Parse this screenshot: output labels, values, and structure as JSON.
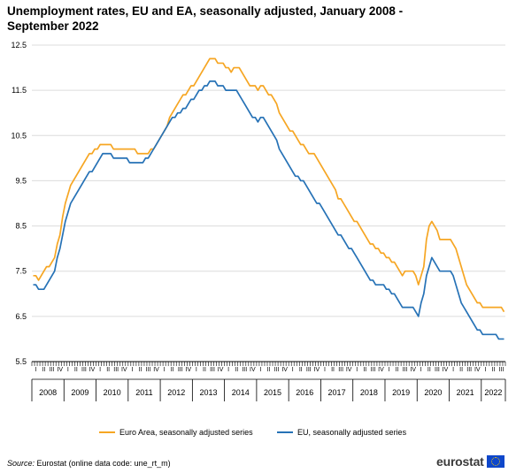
{
  "title_line1": "Unemployment rates, EU and EA, seasonally adjusted, January 2008 -",
  "title_line2": "September 2022",
  "source_label": "Source:",
  "source_text": "Eurostat (online data code: une_rt_m)",
  "logo_text": "eurostat",
  "chart_data": {
    "type": "line",
    "ylim": [
      5.5,
      12.5
    ],
    "yticks": [
      "12.5",
      "11.5",
      "10.5",
      "9.5",
      "8.5",
      "7.5",
      "6.5",
      "5.5"
    ],
    "ytick_values": [
      12.5,
      11.5,
      10.5,
      9.5,
      8.5,
      7.5,
      6.5,
      5.5
    ],
    "quarter_label": "I",
    "quarter_labels": [
      "I",
      "II",
      "III",
      "IV"
    ],
    "years": [
      "2008",
      "2009",
      "2010",
      "2011",
      "2012",
      "2013",
      "2014",
      "2015",
      "2016",
      "2017",
      "2018",
      "2019",
      "2020",
      "2021",
      "2022"
    ],
    "months": 177,
    "grid": true,
    "legend_position": "bottom",
    "colors": {
      "ea": "#f6a623",
      "eu": "#2672b6",
      "grid": "#dcdcdc"
    },
    "series": [
      {
        "name": "Euro Area, seasonally adjusted series",
        "key": "ea",
        "anchors": [
          [
            0,
            7.4
          ],
          [
            2,
            7.3
          ],
          [
            4,
            7.5
          ],
          [
            6,
            7.6
          ],
          [
            8,
            7.8
          ],
          [
            10,
            8.3
          ],
          [
            12,
            9.0
          ],
          [
            14,
            9.4
          ],
          [
            17,
            9.7
          ],
          [
            20,
            10.0
          ],
          [
            23,
            10.2
          ],
          [
            26,
            10.3
          ],
          [
            28,
            10.3
          ],
          [
            31,
            10.2
          ],
          [
            34,
            10.2
          ],
          [
            37,
            10.2
          ],
          [
            40,
            10.1
          ],
          [
            43,
            10.1
          ],
          [
            46,
            10.3
          ],
          [
            49,
            10.6
          ],
          [
            52,
            11.0
          ],
          [
            55,
            11.3
          ],
          [
            58,
            11.5
          ],
          [
            61,
            11.7
          ],
          [
            64,
            12.0
          ],
          [
            66,
            12.2
          ],
          [
            68,
            12.2
          ],
          [
            70,
            12.1
          ],
          [
            72,
            12.0
          ],
          [
            74,
            11.9
          ],
          [
            76,
            12.0
          ],
          [
            78,
            11.9
          ],
          [
            80,
            11.7
          ],
          [
            82,
            11.6
          ],
          [
            84,
            11.5
          ],
          [
            86,
            11.6
          ],
          [
            88,
            11.4
          ],
          [
            90,
            11.3
          ],
          [
            92,
            11.0
          ],
          [
            94,
            10.8
          ],
          [
            96,
            10.6
          ],
          [
            98,
            10.5
          ],
          [
            100,
            10.3
          ],
          [
            102,
            10.2
          ],
          [
            104,
            10.1
          ],
          [
            106,
            10.0
          ],
          [
            108,
            9.8
          ],
          [
            110,
            9.6
          ],
          [
            112,
            9.4
          ],
          [
            114,
            9.1
          ],
          [
            116,
            9.0
          ],
          [
            118,
            8.8
          ],
          [
            120,
            8.6
          ],
          [
            122,
            8.5
          ],
          [
            124,
            8.3
          ],
          [
            126,
            8.1
          ],
          [
            128,
            8.0
          ],
          [
            130,
            7.9
          ],
          [
            132,
            7.8
          ],
          [
            134,
            7.7
          ],
          [
            136,
            7.6
          ],
          [
            138,
            7.4
          ],
          [
            140,
            7.5
          ],
          [
            142,
            7.5
          ],
          [
            144,
            7.2
          ],
          [
            146,
            7.6
          ],
          [
            147,
            8.2
          ],
          [
            148,
            8.5
          ],
          [
            149,
            8.6
          ],
          [
            150,
            8.5
          ],
          [
            152,
            8.2
          ],
          [
            154,
            8.2
          ],
          [
            156,
            8.2
          ],
          [
            158,
            8.0
          ],
          [
            160,
            7.6
          ],
          [
            162,
            7.2
          ],
          [
            164,
            7.0
          ],
          [
            166,
            6.8
          ],
          [
            168,
            6.7
          ],
          [
            170,
            6.7
          ],
          [
            172,
            6.7
          ],
          [
            174,
            6.7
          ],
          [
            176,
            6.6
          ]
        ]
      },
      {
        "name": "EU, seasonally adjusted series",
        "key": "eu",
        "anchors": [
          [
            0,
            7.2
          ],
          [
            2,
            7.1
          ],
          [
            4,
            7.1
          ],
          [
            6,
            7.3
          ],
          [
            8,
            7.5
          ],
          [
            10,
            8.0
          ],
          [
            12,
            8.6
          ],
          [
            14,
            9.0
          ],
          [
            17,
            9.3
          ],
          [
            20,
            9.6
          ],
          [
            23,
            9.8
          ],
          [
            26,
            10.1
          ],
          [
            28,
            10.1
          ],
          [
            31,
            10.0
          ],
          [
            34,
            10.0
          ],
          [
            37,
            9.9
          ],
          [
            40,
            9.9
          ],
          [
            43,
            10.0
          ],
          [
            46,
            10.3
          ],
          [
            49,
            10.6
          ],
          [
            52,
            10.9
          ],
          [
            55,
            11.0
          ],
          [
            58,
            11.2
          ],
          [
            61,
            11.4
          ],
          [
            64,
            11.6
          ],
          [
            66,
            11.7
          ],
          [
            68,
            11.7
          ],
          [
            70,
            11.6
          ],
          [
            72,
            11.5
          ],
          [
            74,
            11.5
          ],
          [
            76,
            11.5
          ],
          [
            78,
            11.3
          ],
          [
            80,
            11.1
          ],
          [
            82,
            10.9
          ],
          [
            84,
            10.8
          ],
          [
            86,
            10.9
          ],
          [
            88,
            10.7
          ],
          [
            90,
            10.5
          ],
          [
            92,
            10.2
          ],
          [
            94,
            10.0
          ],
          [
            96,
            9.8
          ],
          [
            98,
            9.6
          ],
          [
            100,
            9.5
          ],
          [
            102,
            9.4
          ],
          [
            104,
            9.2
          ],
          [
            106,
            9.0
          ],
          [
            108,
            8.9
          ],
          [
            110,
            8.7
          ],
          [
            112,
            8.5
          ],
          [
            114,
            8.3
          ],
          [
            116,
            8.2
          ],
          [
            118,
            8.0
          ],
          [
            120,
            7.9
          ],
          [
            122,
            7.7
          ],
          [
            124,
            7.5
          ],
          [
            126,
            7.3
          ],
          [
            128,
            7.2
          ],
          [
            130,
            7.2
          ],
          [
            132,
            7.1
          ],
          [
            134,
            7.0
          ],
          [
            136,
            6.9
          ],
          [
            138,
            6.7
          ],
          [
            140,
            6.7
          ],
          [
            142,
            6.7
          ],
          [
            144,
            6.5
          ],
          [
            146,
            7.0
          ],
          [
            147,
            7.4
          ],
          [
            148,
            7.6
          ],
          [
            149,
            7.8
          ],
          [
            150,
            7.7
          ],
          [
            152,
            7.5
          ],
          [
            154,
            7.5
          ],
          [
            156,
            7.5
          ],
          [
            158,
            7.2
          ],
          [
            160,
            6.8
          ],
          [
            162,
            6.6
          ],
          [
            164,
            6.4
          ],
          [
            166,
            6.2
          ],
          [
            168,
            6.1
          ],
          [
            170,
            6.1
          ],
          [
            172,
            6.1
          ],
          [
            174,
            6.0
          ],
          [
            176,
            6.0
          ]
        ]
      }
    ]
  }
}
